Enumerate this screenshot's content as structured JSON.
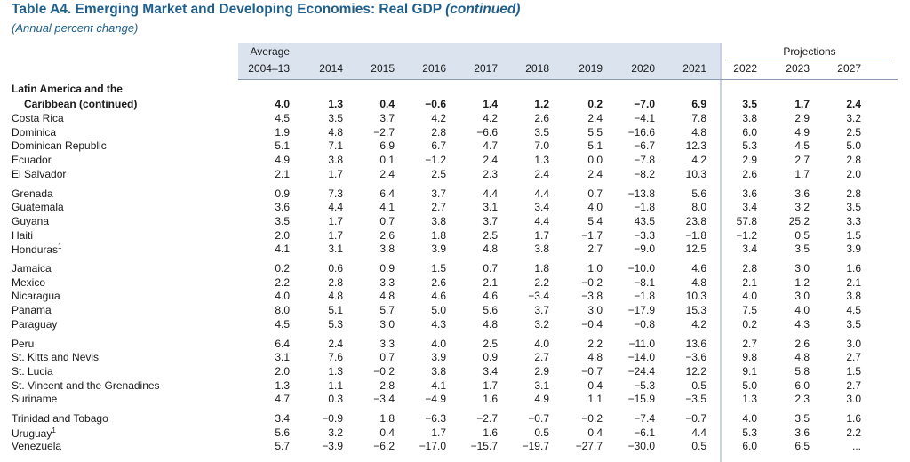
{
  "title": "Table A4. Emerging Market and Developing Economies: Real GDP",
  "title_suffix": "(continued)",
  "subtitle": "(Annual percent change)",
  "header": {
    "average_top": "Average",
    "projections": "Projections",
    "columns": [
      "2004–13",
      "2014",
      "2015",
      "2016",
      "2017",
      "2018",
      "2019",
      "2020",
      "2021",
      "2022",
      "2023",
      "2027"
    ]
  },
  "group": {
    "line1": "Latin America and the",
    "line2": "Caribbean (continued)",
    "values": [
      "4.0",
      "1.3",
      "0.4",
      "−0.6",
      "1.4",
      "1.2",
      "0.2",
      "−7.0",
      "6.9",
      "3.5",
      "1.7",
      "2.4"
    ]
  },
  "rows": [
    {
      "name": "Costa Rica",
      "sup": "",
      "values": [
        "4.5",
        "3.5",
        "3.7",
        "4.2",
        "4.2",
        "2.6",
        "2.4",
        "−4.1",
        "7.8",
        "3.8",
        "2.9",
        "3.2"
      ]
    },
    {
      "name": "Dominica",
      "sup": "",
      "values": [
        "1.9",
        "4.8",
        "−2.7",
        "2.8",
        "−6.6",
        "3.5",
        "5.5",
        "−16.6",
        "4.8",
        "6.0",
        "4.9",
        "2.5"
      ]
    },
    {
      "name": "Dominican Republic",
      "sup": "",
      "values": [
        "5.1",
        "7.1",
        "6.9",
        "6.7",
        "4.7",
        "7.0",
        "5.1",
        "−6.7",
        "12.3",
        "5.3",
        "4.5",
        "5.0"
      ]
    },
    {
      "name": "Ecuador",
      "sup": "",
      "values": [
        "4.9",
        "3.8",
        "0.1",
        "−1.2",
        "2.4",
        "1.3",
        "0.0",
        "−7.8",
        "4.2",
        "2.9",
        "2.7",
        "2.8"
      ]
    },
    {
      "name": "El Salvador",
      "sup": "",
      "values": [
        "2.1",
        "1.7",
        "2.4",
        "2.5",
        "2.3",
        "2.4",
        "2.4",
        "−8.2",
        "10.3",
        "2.6",
        "1.7",
        "2.0"
      ]
    },
    {
      "name": "Grenada",
      "sup": "",
      "values": [
        "0.9",
        "7.3",
        "6.4",
        "3.7",
        "4.4",
        "4.4",
        "0.7",
        "−13.8",
        "5.6",
        "3.6",
        "3.6",
        "2.8"
      ]
    },
    {
      "name": "Guatemala",
      "sup": "",
      "values": [
        "3.6",
        "4.4",
        "4.1",
        "2.7",
        "3.1",
        "3.4",
        "4.0",
        "−1.8",
        "8.0",
        "3.4",
        "3.2",
        "3.5"
      ]
    },
    {
      "name": "Guyana",
      "sup": "",
      "values": [
        "3.5",
        "1.7",
        "0.7",
        "3.8",
        "3.7",
        "4.4",
        "5.4",
        "43.5",
        "23.8",
        "57.8",
        "25.2",
        "3.3"
      ]
    },
    {
      "name": "Haiti",
      "sup": "",
      "values": [
        "2.0",
        "1.7",
        "2.6",
        "1.8",
        "2.5",
        "1.7",
        "−1.7",
        "−3.3",
        "−1.8",
        "−1.2",
        "0.5",
        "1.5"
      ]
    },
    {
      "name": "Honduras",
      "sup": "1",
      "values": [
        "4.1",
        "3.1",
        "3.8",
        "3.9",
        "4.8",
        "3.8",
        "2.7",
        "−9.0",
        "12.5",
        "3.4",
        "3.5",
        "3.9"
      ]
    },
    {
      "name": "Jamaica",
      "sup": "",
      "values": [
        "0.2",
        "0.6",
        "0.9",
        "1.5",
        "0.7",
        "1.8",
        "1.0",
        "−10.0",
        "4.6",
        "2.8",
        "3.0",
        "1.6"
      ]
    },
    {
      "name": "Mexico",
      "sup": "",
      "values": [
        "2.2",
        "2.8",
        "3.3",
        "2.6",
        "2.1",
        "2.2",
        "−0.2",
        "−8.1",
        "4.8",
        "2.1",
        "1.2",
        "2.1"
      ]
    },
    {
      "name": "Nicaragua",
      "sup": "",
      "values": [
        "4.0",
        "4.8",
        "4.8",
        "4.6",
        "4.6",
        "−3.4",
        "−3.8",
        "−1.8",
        "10.3",
        "4.0",
        "3.0",
        "3.8"
      ]
    },
    {
      "name": "Panama",
      "sup": "",
      "values": [
        "8.0",
        "5.1",
        "5.7",
        "5.0",
        "5.6",
        "3.7",
        "3.0",
        "−17.9",
        "15.3",
        "7.5",
        "4.0",
        "4.5"
      ]
    },
    {
      "name": "Paraguay",
      "sup": "",
      "values": [
        "4.5",
        "5.3",
        "3.0",
        "4.3",
        "4.8",
        "3.2",
        "−0.4",
        "−0.8",
        "4.2",
        "0.2",
        "4.3",
        "3.5"
      ]
    },
    {
      "name": "Peru",
      "sup": "",
      "values": [
        "6.4",
        "2.4",
        "3.3",
        "4.0",
        "2.5",
        "4.0",
        "2.2",
        "−11.0",
        "13.6",
        "2.7",
        "2.6",
        "3.0"
      ]
    },
    {
      "name": "St. Kitts and Nevis",
      "sup": "",
      "values": [
        "3.1",
        "7.6",
        "0.7",
        "3.9",
        "0.9",
        "2.7",
        "4.8",
        "−14.0",
        "−3.6",
        "9.8",
        "4.8",
        "2.7"
      ]
    },
    {
      "name": "St. Lucia",
      "sup": "",
      "values": [
        "2.0",
        "1.3",
        "−0.2",
        "3.8",
        "3.4",
        "2.9",
        "−0.7",
        "−24.4",
        "12.2",
        "9.1",
        "5.8",
        "1.5"
      ]
    },
    {
      "name": "St. Vincent and the Grenadines",
      "sup": "",
      "values": [
        "1.3",
        "1.1",
        "2.8",
        "4.1",
        "1.7",
        "3.1",
        "0.4",
        "−5.3",
        "0.5",
        "5.0",
        "6.0",
        "2.7"
      ]
    },
    {
      "name": "Suriname",
      "sup": "",
      "values": [
        "4.7",
        "0.3",
        "−3.4",
        "−4.9",
        "1.6",
        "4.9",
        "1.1",
        "−15.9",
        "−3.5",
        "1.3",
        "2.3",
        "3.0"
      ]
    },
    {
      "name": "Trinidad and Tobago",
      "sup": "",
      "values": [
        "3.4",
        "−0.9",
        "1.8",
        "−6.3",
        "−2.7",
        "−0.7",
        "−0.2",
        "−7.4",
        "−0.7",
        "4.0",
        "3.5",
        "1.6"
      ]
    },
    {
      "name": "Uruguay",
      "sup": "1",
      "values": [
        "5.6",
        "3.2",
        "0.4",
        "1.7",
        "1.6",
        "0.5",
        "0.4",
        "−6.1",
        "4.4",
        "5.3",
        "3.6",
        "2.2"
      ]
    },
    {
      "name": "Venezuela",
      "sup": "",
      "values": [
        "5.7",
        "−3.9",
        "−6.2",
        "−17.0",
        "−15.7",
        "−19.7",
        "−27.7",
        "−30.0",
        "0.5",
        "6.0",
        "6.5",
        "..."
      ]
    }
  ]
}
